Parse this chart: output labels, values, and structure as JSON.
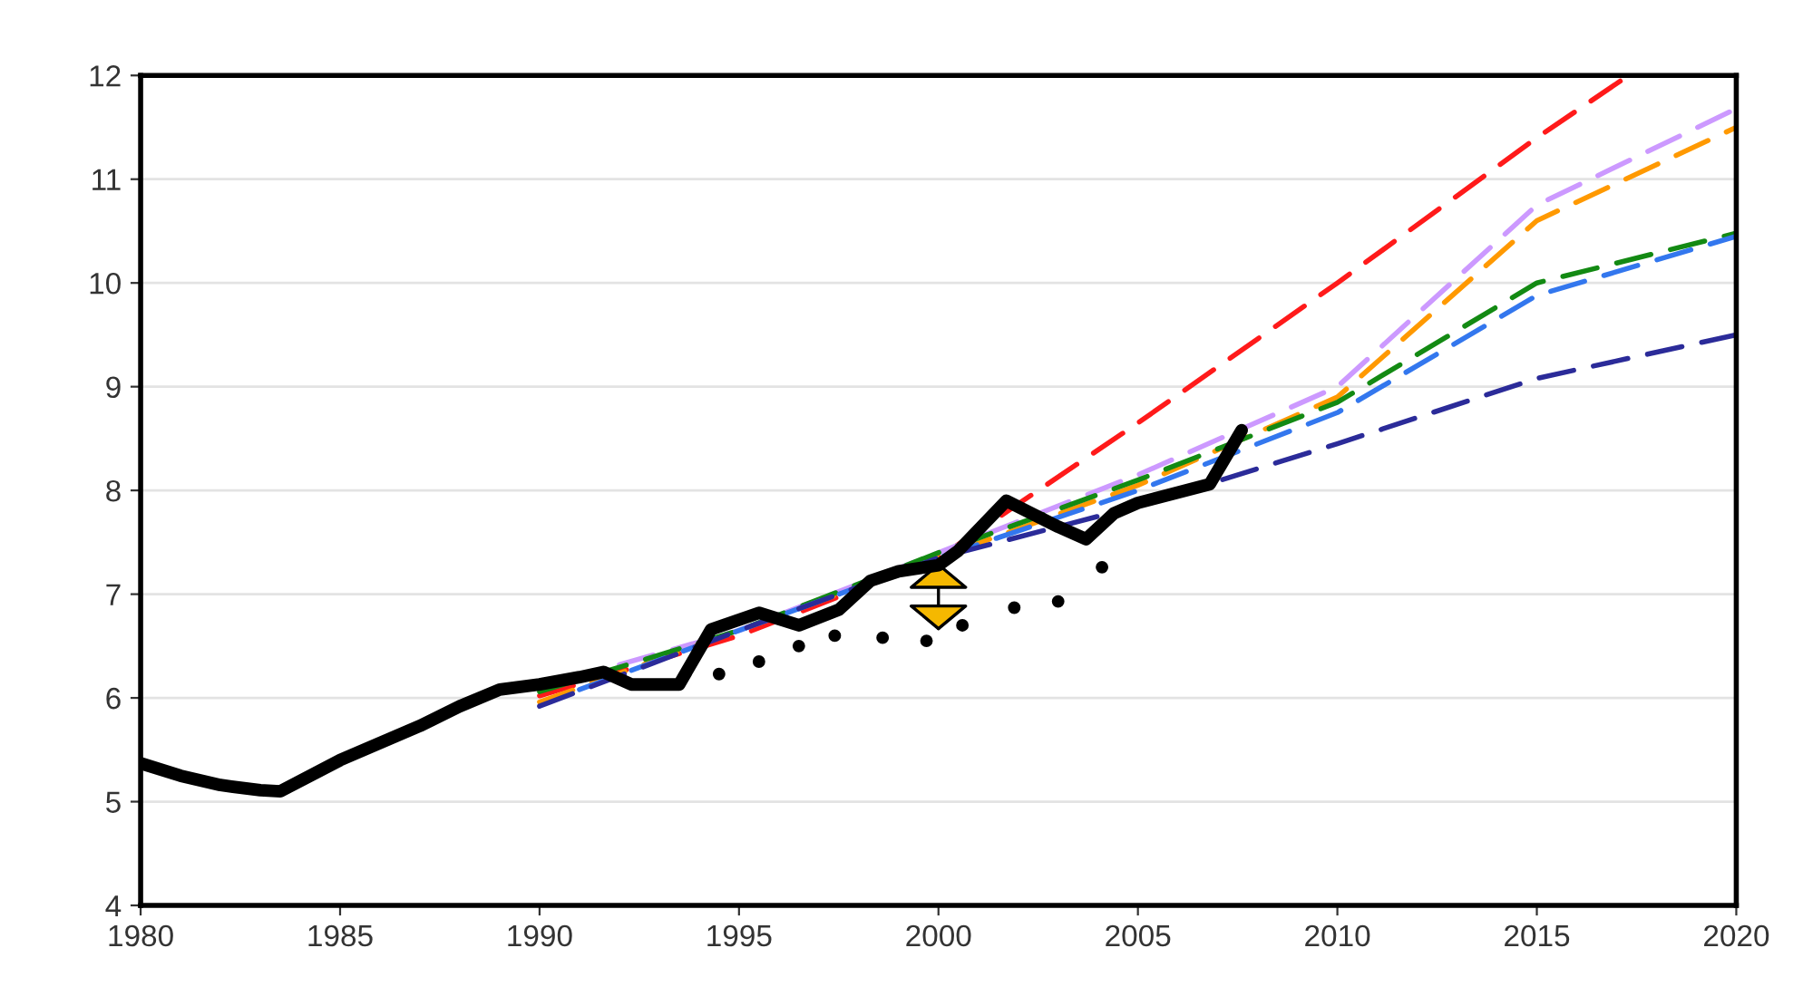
{
  "chart_data": {
    "type": "line",
    "xlim": [
      1980,
      2020
    ],
    "xticks": [
      1980,
      1985,
      1990,
      1995,
      2000,
      2005,
      2010,
      2015,
      2020
    ],
    "ylim": [
      4,
      12
    ],
    "yticks": [
      4,
      5,
      6,
      7,
      8,
      9,
      10,
      11,
      12
    ],
    "grid": "y",
    "legend": false,
    "series": [
      {
        "color": "#ff1a1a",
        "line_style": "dashed",
        "x": [
          1990,
          1995,
          2000,
          2005,
          2010,
          2015,
          2017.3
        ],
        "values": [
          6.02,
          6.6,
          7.35,
          8.65,
          10.0,
          11.4,
          12.0
        ]
      },
      {
        "color": "#cc99ff",
        "line_style": "dashed",
        "x": [
          1992,
          1995,
          2000,
          2005,
          2010,
          2015,
          2020
        ],
        "values": [
          6.32,
          6.65,
          7.4,
          8.15,
          9.0,
          10.75,
          11.68
        ]
      },
      {
        "color": "#ff9900",
        "line_style": "dashed",
        "x": [
          1990,
          1995,
          2000,
          2005,
          2010,
          2015,
          2020
        ],
        "values": [
          5.96,
          6.65,
          7.35,
          8.05,
          8.9,
          10.6,
          11.5
        ]
      },
      {
        "color": "#138a13",
        "line_style": "dashed",
        "x": [
          1990,
          1995,
          2000,
          2005,
          2010,
          2015,
          2020
        ],
        "values": [
          6.06,
          6.65,
          7.4,
          8.1,
          8.85,
          10.0,
          10.48
        ]
      },
      {
        "color": "#3377ee",
        "line_style": "dashed",
        "x": [
          1991,
          1995,
          2000,
          2005,
          2010,
          2015,
          2020
        ],
        "values": [
          6.08,
          6.65,
          7.35,
          8.0,
          8.75,
          9.88,
          10.45
        ]
      },
      {
        "color": "#2b2b99",
        "line_style": "dashed",
        "x": [
          1990,
          1995,
          2000,
          2005,
          2010,
          2015,
          2020
        ],
        "values": [
          5.92,
          6.65,
          7.35,
          7.85,
          8.45,
          9.08,
          9.5
        ]
      },
      {
        "color": "#000000",
        "type": "scatter",
        "marker": "circle",
        "x": [
          1994.5,
          1995.5,
          1996.5,
          1997.4,
          1998.6,
          1999.7,
          2000.6,
          2001.9,
          2003,
          2004.1
        ],
        "values": [
          6.23,
          6.35,
          6.5,
          6.6,
          6.58,
          6.55,
          6.7,
          6.87,
          6.93,
          7.26
        ]
      },
      {
        "color": "#000000",
        "line_style": "solid",
        "x": [
          1980,
          1981,
          1982,
          1983,
          1983.5,
          1985,
          1987,
          1988,
          1989,
          1990,
          1991,
          1991.6,
          1992.3,
          1993.5,
          1994.3,
          1995.5,
          1996.5,
          1997.5,
          1998.3,
          1999,
          2000,
          2000.5,
          2001.7,
          2003,
          2003.7,
          2004.4,
          2005,
          2006.8,
          2007.6
        ],
        "values": [
          5.37,
          5.25,
          5.16,
          5.11,
          5.1,
          5.4,
          5.73,
          5.92,
          6.08,
          6.13,
          6.2,
          6.25,
          6.13,
          6.13,
          6.66,
          6.82,
          6.7,
          6.85,
          7.13,
          7.22,
          7.28,
          7.42,
          7.9,
          7.65,
          7.53,
          7.78,
          7.88,
          8.06,
          8.58
        ]
      }
    ]
  }
}
